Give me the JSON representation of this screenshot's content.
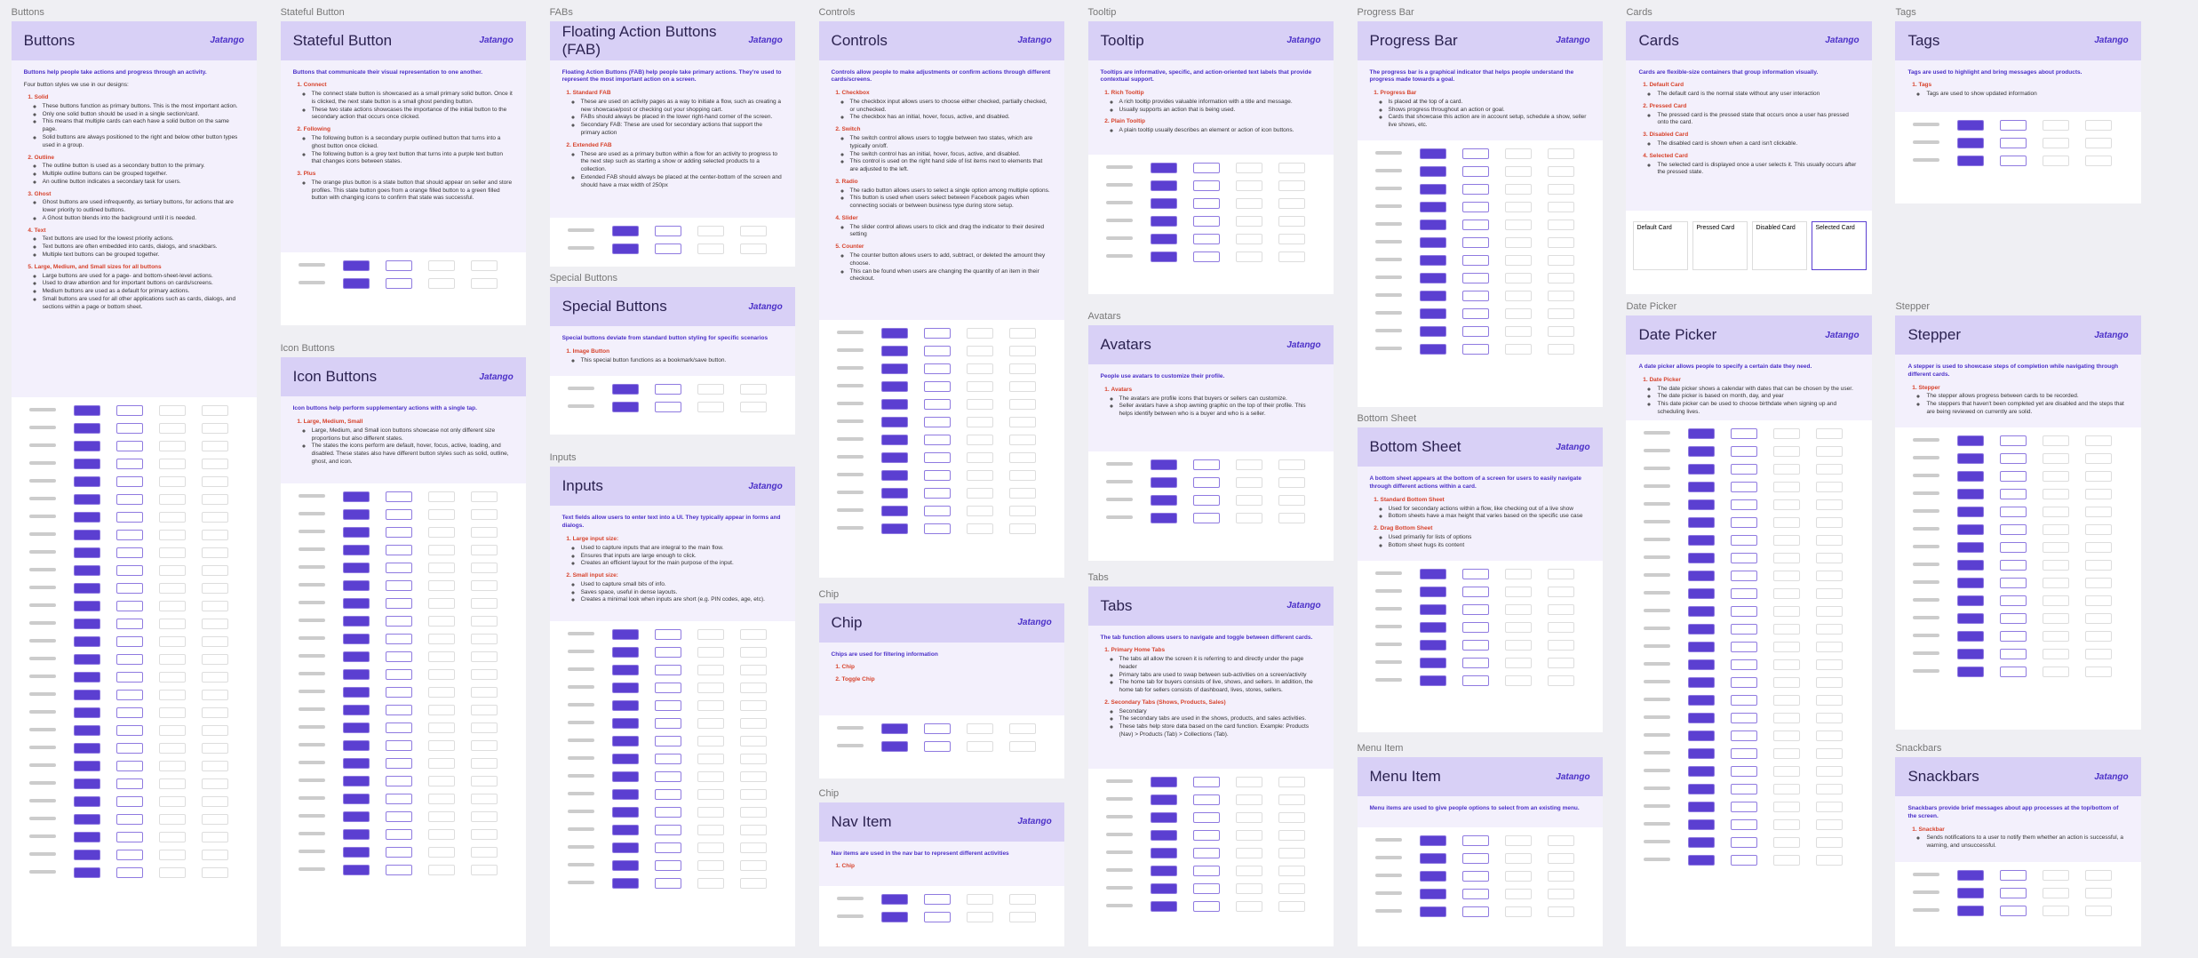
{
  "brand": "Jatango",
  "sections": [
    {
      "label": "Buttons",
      "title": "Buttons",
      "intro": "Buttons help people take actions and progress through an activity.",
      "lead": "Four button styles we use in our designs:",
      "groups": [
        {
          "heading": "Solid",
          "bullets": [
            "These buttons function as primary buttons. This is the most important action.",
            "Only one solid button should be used in a single section/card.",
            "This means that multiple cards can each have a solid button on the same page.",
            "Solid buttons are always positioned to the right and below other button types used in a group."
          ]
        },
        {
          "heading": "Outline",
          "bullets": [
            "The outline button is used as a secondary button to the primary.",
            "Multiple outline buttons can be grouped together.",
            "An outline button indicates a secondary task for users."
          ]
        },
        {
          "heading": "Ghost",
          "bullets": [
            "Ghost buttons are used infrequently, as tertiary buttons, for actions that are lower priority to outlined buttons.",
            "A Ghost button blends into the background until it is needed."
          ]
        },
        {
          "heading": "Text",
          "bullets": [
            "Text buttons are used for the lowest priority actions.",
            "Text buttons are often embedded into cards, dialogs, and snackbars.",
            "Multiple text buttons can be grouped together."
          ]
        },
        {
          "heading": "Large, Medium, and Small sizes for all buttons",
          "bullets": [
            "Large buttons are used for a page- and bottom-sheet-level actions.",
            "Used to draw attention and for important buttons on cards/screens.",
            "Medium buttons are used as a default for primary actions.",
            "Small buttons are used for all other applications such as cards, dialogs, and sections within a page or bottom sheet."
          ]
        }
      ]
    },
    {
      "label": "Stateful Button",
      "title": "Stateful Button",
      "intro": "Buttons that communicate their visual representation to one another.",
      "groups": [
        {
          "heading": "Connect",
          "bullets": [
            "The connect state button is showcased as a small primary solid button. Once it is clicked, the next state button is a small ghost pending button.",
            "These two state actions showcases the importance of the initial button to the secondary action that occurs once clicked."
          ]
        },
        {
          "heading": "Following",
          "bullets": [
            "The following button is a secondary purple outlined button that turns into a ghost button once clicked.",
            "The following button is a grey text button that turns into a purple text button that changes icons between states."
          ]
        },
        {
          "heading": "Plus",
          "bullets": [
            "The orange plus button is a state button that should appear on seller and store profiles. This state button goes from a orange filled button to a green filled button with changing icons to confirm that state was successful."
          ]
        }
      ]
    },
    {
      "label": "Icon Buttons",
      "title": "Icon Buttons",
      "intro": "Icon buttons help perform supplementary actions with a single tap.",
      "groups": [
        {
          "heading": "Large, Medium, Small",
          "bullets": [
            "Large, Medium, and Small icon buttons showcase not only different size proportions but also different states.",
            "The states the icons perform are default, hover, focus, active, loading, and disabled. These states also have different button styles such as solid, outline, ghost, and icon."
          ]
        }
      ]
    },
    {
      "label": "FABs",
      "title": "Floating Action Buttons (FAB)",
      "intro": "Floating Action Buttons (FAB) help people take primary actions. They're used to represent the most important action on a screen.",
      "groups": [
        {
          "heading": "Standard FAB",
          "bullets": [
            "These are used on activity pages as a way to initiate a flow, such as creating a new showcase/post or checking out your shopping cart.",
            "FABs should always be placed in the lower right-hand corner of the screen.",
            "Secondary FAB: These are used for secondary actions that support the primary action"
          ]
        },
        {
          "heading": "Extended FAB",
          "bullets": [
            "These are used as a primary button within a flow for an activity to progress to the next step such as starting a show or adding selected products to a collection.",
            "Extended FAB should always be placed at the center-bottom of the screen and should have a max width of 250px"
          ]
        }
      ]
    },
    {
      "label": "Special Buttons",
      "title": "Special Buttons",
      "intro": "Special buttons deviate from standard button styling for specific scenarios",
      "groups": [
        {
          "heading": "Image Button",
          "bullets": [
            "This special button functions as a bookmark/save button."
          ]
        }
      ]
    },
    {
      "label": "Inputs",
      "title": "Inputs",
      "intro": "Text fields allow users to enter text into a UI. They typically appear in forms and dialogs.",
      "groups": [
        {
          "heading": "Large input size:",
          "bullets": [
            "Used to capture inputs that are integral to the main flow.",
            "Ensures that inputs are large enough to click.",
            "Creates an efficient layout for the main purpose of the input."
          ]
        },
        {
          "heading": "Small input size:",
          "bullets": [
            "Used to capture small bits of info.",
            "Saves space, useful in dense layouts.",
            "Creates a minimal look when inputs are short (e.g. PIN codes, age, etc)."
          ]
        }
      ]
    },
    {
      "label": "Controls",
      "title": "Controls",
      "intro": "Controls allow people to make adjustments or confirm actions through different cards/screens.",
      "groups": [
        {
          "heading": "Checkbox",
          "bullets": [
            "The checkbox input allows users to choose either checked, partially checked, or unchecked.",
            "The checkbox has an initial, hover, focus, active, and disabled."
          ]
        },
        {
          "heading": "Switch",
          "bullets": [
            "The switch control allows users to toggle between two states, which are typically on/off.",
            "The switch control has an initial, hover, focus, active, and disabled.",
            "This control is used on the right hand side of list items next to elements that are adjusted to the left."
          ]
        },
        {
          "heading": "Radio",
          "bullets": [
            "The radio button allows users to select a single option among multiple options.",
            "This button is used when users select between Facebook pages when connecting socials or between business type during store setup."
          ]
        },
        {
          "heading": "Slider",
          "bullets": [
            "The slider control allows users to click and drag the indicator to their desired setting"
          ]
        },
        {
          "heading": "Counter",
          "bullets": [
            "The counter button allows users to add, subtract, or deleted the amount they choose.",
            "This can be found when users are changing the quantity of an item in their checkout."
          ]
        }
      ]
    },
    {
      "label": "Chip",
      "title": "Chip",
      "intro": "Chips are used for filtering information",
      "groups": [
        {
          "heading": "Chip",
          "bullets": []
        },
        {
          "heading": "Toggle Chip",
          "bullets": []
        }
      ]
    },
    {
      "label": "Chip",
      "title": "Nav Item",
      "intro": "Nav items are used in the nav bar to represent different activities",
      "groups": [
        {
          "heading": "Chip",
          "bullets": []
        }
      ]
    },
    {
      "label": "Tooltip",
      "title": "Tooltip",
      "intro": "Tooltips are informative, specific, and action-oriented text labels that provide contextual support.",
      "groups": [
        {
          "heading": "Rich Tooltip",
          "bullets": [
            "A rich tooltip provides valuable information with a title and message.",
            "Usually supports an action that is being used."
          ]
        },
        {
          "heading": "Plain Tooltip",
          "bullets": [
            "A plain tooltip usually describes an element or action of icon buttons."
          ]
        }
      ]
    },
    {
      "label": "Avatars",
      "title": "Avatars",
      "intro": "People use avatars to customize their profile.",
      "groups": [
        {
          "heading": "Avatars",
          "bullets": [
            "The avatars are profile icons that buyers or sellers can customize.",
            "Seller avatars have a shop awning graphic on the top of their profile. This helps identify between who is a buyer and who is a seller."
          ]
        }
      ]
    },
    {
      "label": "Tabs",
      "title": "Tabs",
      "intro": "The tab function allows users to navigate and toggle between different cards.",
      "groups": [
        {
          "heading": "Primary Home Tabs",
          "bullets": [
            "The tabs all allow the screen it is referring to and directly under the page header",
            "Primary tabs are used to swap between sub-activities on a screen/activity",
            "The home tab for buyers consists of live, shows, and sellers. In addition, the home tab for sellers consists of dashboard, lives, stores, sellers."
          ]
        },
        {
          "heading": "Secondary Tabs (Shows, Products, Sales)",
          "bullets": [
            "Secondary",
            "The secondary tabs are used in the shows, products, and sales activities.",
            "These tabs help store data based on the card function. Example: Products (Nav) > Products (Tab) > Collections (Tab)."
          ]
        }
      ]
    },
    {
      "label": "Progress Bar",
      "title": "Progress Bar",
      "intro": "The progress bar is a graphical indicator that helps people understand the progress made towards a goal.",
      "groups": [
        {
          "heading": "Progress Bar",
          "bullets": [
            "Is placed at the top of a card.",
            "Shows progress throughout an action or goal.",
            "Cards that showcase this action are in account setup, schedule a show, seller live shows, etc."
          ]
        }
      ]
    },
    {
      "label": "Bottom Sheet",
      "title": "Bottom Sheet",
      "intro": "A bottom sheet appears at the bottom of a screen for users to easily navigate through different actions within a card.",
      "groups": [
        {
          "heading": "Standard Bottom Sheet",
          "bullets": [
            "Used for secondary actions within a flow, like checking out of a live show",
            "Bottom sheets have a max height that varies based on the specific use case"
          ]
        },
        {
          "heading": "Drag Bottom Sheet",
          "bullets": [
            "Used primarily for lists of options",
            "Bottom sheet hugs its content"
          ]
        }
      ]
    },
    {
      "label": "Menu Item",
      "title": "Menu Item",
      "intro": "Menu items are used to give people options to select from an existing menu.",
      "groups": []
    },
    {
      "label": "Cards",
      "title": "Cards",
      "intro": "Cards are flexible-size containers that group information visually.",
      "groups": [
        {
          "heading": "Default Card",
          "bullets": [
            "The default card is the normal state without any user interaction"
          ]
        },
        {
          "heading": "Pressed Card",
          "bullets": [
            "The pressed card is the pressed state that occurs once a user has pressed onto the card."
          ]
        },
        {
          "heading": "Disabled Card",
          "bullets": [
            "The disabled card is shown when a card isn't clickable."
          ]
        },
        {
          "heading": "Selected Card",
          "bullets": [
            "The selected card is displayed once a user selects it. This usually occurs after the pressed state."
          ]
        }
      ],
      "cards": [
        "Default Card",
        "Pressed Card",
        "Disabled Card",
        "Selected Card"
      ]
    },
    {
      "label": "Date Picker",
      "title": "Date Picker",
      "intro": "A date picker allows people to specify a certain date they need.",
      "groups": [
        {
          "heading": "Date Picker",
          "bullets": [
            "The date picker shows a calendar with dates that can be chosen by the user.",
            "The date picker is based on month, day, and year",
            "This date picker can be used to choose birthdate when signing up and scheduling lives."
          ]
        }
      ]
    },
    {
      "label": "Tags",
      "title": "Tags",
      "intro": "Tags are used to highlight and bring messages about products.",
      "groups": [
        {
          "heading": "Tags",
          "bullets": [
            "Tags are used to show updated information"
          ]
        }
      ]
    },
    {
      "label": "Stepper",
      "title": "Stepper",
      "intro": "A stepper is used to showcase steps of completion while navigating through different cards.",
      "groups": [
        {
          "heading": "Stepper",
          "bullets": [
            "The stepper allows progress between cards to be recorded.",
            "The steppers that haven't been completed yet are disabled and the steps that are being reviewed on currently are solid."
          ]
        }
      ]
    },
    {
      "label": "Snackbars",
      "title": "Snackbars",
      "intro": "Snackbars provide brief messages about app processes at the top/bottom of the screen.",
      "groups": [
        {
          "heading": "Snackbar",
          "bullets": [
            "Sends notifications to a user to notify them whether an action is successful, a warning, and unsuccessful."
          ]
        }
      ]
    }
  ]
}
